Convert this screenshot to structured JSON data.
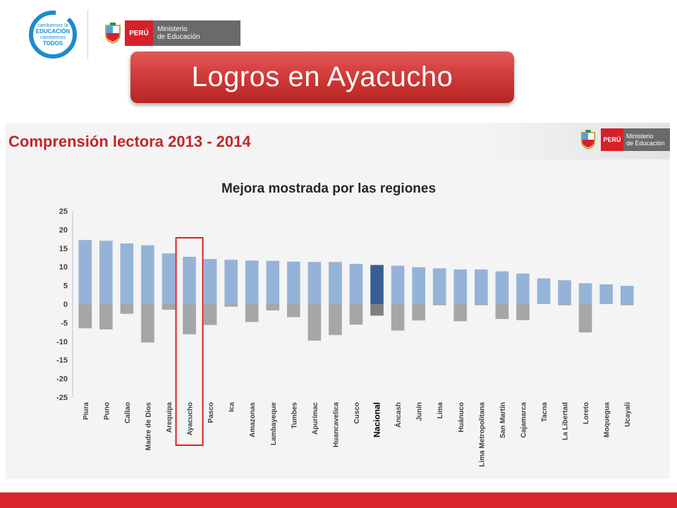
{
  "header": {
    "campaign_logo": {
      "text": [
        "cambiemos la",
        "EDUCACIÓN",
        "cambiemos",
        "TODOS"
      ],
      "color": "#1b8ccd"
    },
    "ministry_logo": {
      "country": "PERÚ",
      "line1": "Ministerio",
      "line2": "de Educación"
    },
    "title": "Logros en Ayacucho"
  },
  "panel": {
    "title": "Comprensión lectora 2013 - 2014",
    "ministry_logo": {
      "country": "PERÚ",
      "line1": "Ministerio",
      "line2": "de Educación"
    }
  },
  "chart_data": {
    "type": "bar",
    "title": "Mejora mostrada por las regiones",
    "categories": [
      "Piura",
      "Puno",
      "Callao",
      "Madre de Dios",
      "Arequipa",
      "Ayacucho",
      "Pasco",
      "Ica",
      "Amazonas",
      "Lambayeque",
      "Tumbes",
      "Apurímac",
      "Huancavelica",
      "Cusco",
      "Nacional",
      "Áncash",
      "Junín",
      "Lima",
      "Huánuco",
      "Lima Metropolitana",
      "San Martín",
      "Cajamarca",
      "Tacna",
      "La Libertad",
      "Loreto",
      "Moquegua",
      "Ucayali"
    ],
    "series": [
      {
        "values": [
          17.2,
          17.0,
          16.3,
          15.8,
          13.6,
          12.7,
          12.1,
          11.9,
          11.7,
          11.6,
          11.4,
          11.3,
          11.3,
          10.8,
          10.5,
          10.3,
          9.9,
          9.6,
          9.3,
          9.3,
          8.8,
          8.2,
          6.9,
          6.4,
          5.6,
          5.3,
          4.9
        ],
        "color": "#95b3d7",
        "highlight_color": "#366092"
      },
      {
        "values": [
          -6.5,
          -6.8,
          -2.6,
          -10.3,
          -1.5,
          -8.1,
          -5.6,
          -0.7,
          -4.8,
          -1.7,
          -3.5,
          -9.8,
          -8.3,
          -5.5,
          -3.1,
          -7.1,
          -4.4,
          -0.3,
          -4.6,
          -0.3,
          -4.0,
          -4.3,
          0,
          -0.3,
          -7.6,
          0,
          -0.3
        ],
        "color": "#a6a6a6",
        "highlight_color": "#7f7f7f"
      }
    ],
    "highlighted_category": "Nacional",
    "boxed_category": "Ayacucho",
    "box_color": "#e02020",
    "ylim": [
      -25,
      25
    ],
    "yticks": [
      25,
      20,
      15,
      10,
      5,
      0,
      -5,
      -10,
      -15,
      -20,
      -25
    ],
    "grid": false,
    "legend": "none"
  },
  "colors": {
    "accent": "#d9262b",
    "banner": "#d13c3a",
    "panel_title": "#c1272d"
  }
}
